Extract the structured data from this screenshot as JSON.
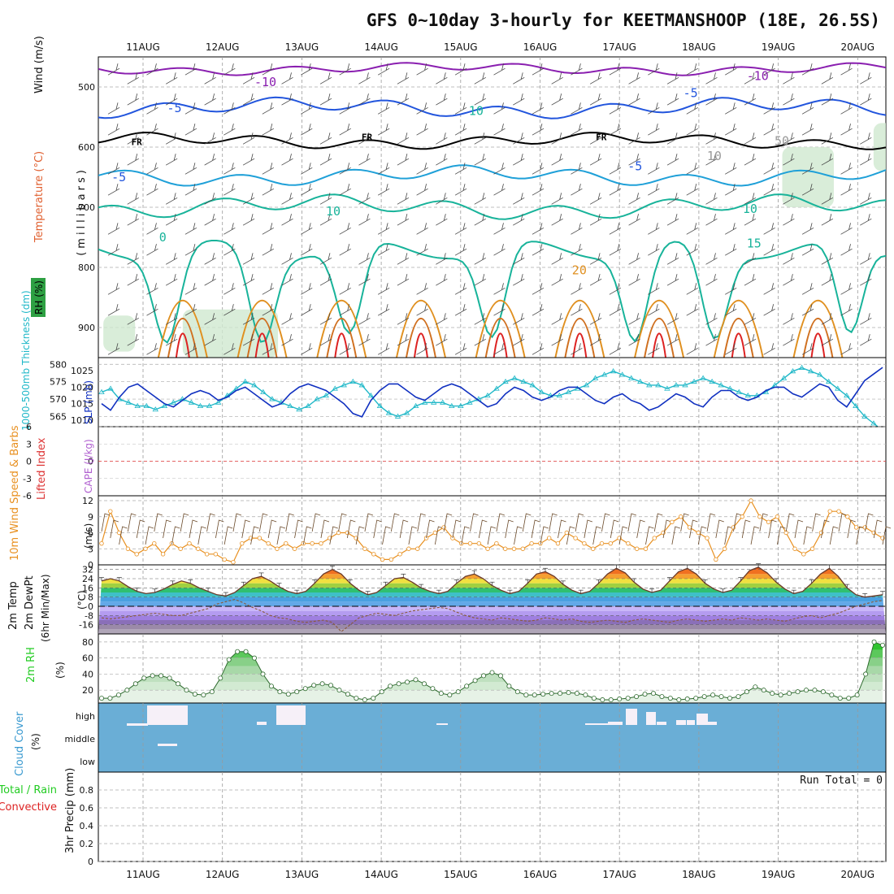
{
  "title": "GFS 0~10day 3-hourly for KEETMANSHOOP (18E, 26.5S)",
  "colors": {
    "rh_green": "#2ea043",
    "wind_gray": "#444444",
    "temp_violet": "#8a1fb0",
    "temp_blue": "#2255dd",
    "temp_cyan": "#1fa0d8",
    "temp_teal": "#18b39a",
    "temp_orange": "#e09020",
    "temp_red": "#dd2222",
    "slp_blue": "#1030c0",
    "thick_cyan": "#20b8c8",
    "wind10_orange": "#e89020",
    "cloud_blue": "#6aaed6",
    "precip_green": "#22cc22",
    "precip_red": "#dd2222"
  },
  "chart_data": [
    {
      "type": "contour",
      "name_hint": "upper-air cross section",
      "x_dates": [
        "11AUG",
        "12AUG",
        "13AUG",
        "14AUG",
        "15AUG",
        "16AUG",
        "17AUG",
        "18AUG",
        "19AUG",
        "20AUG"
      ],
      "ylabel": "(millibars)",
      "left_labels": [
        "Wind (m/s)",
        "Temperature (°C)",
        "RH (%)"
      ],
      "y_ticks": [
        500,
        600,
        700,
        800,
        900
      ],
      "ylim": [
        450,
        950
      ],
      "contour_labels": [
        {
          "label": "-10",
          "x": 1.8,
          "p": 492
        },
        {
          "label": "-10",
          "x": 8.0,
          "p": 482
        },
        {
          "label": "-5",
          "x": 0.7,
          "p": 535
        },
        {
          "label": "-5",
          "x": 7.2,
          "p": 510
        },
        {
          "label": "FR",
          "x": 0.25,
          "p": 590
        },
        {
          "label": "FR",
          "x": 3.15,
          "p": 582
        },
        {
          "label": "FR",
          "x": 6.1,
          "p": 582
        },
        {
          "label": "-5",
          "x": 0.0,
          "p": 650
        },
        {
          "label": "-5",
          "x": 6.5,
          "p": 632
        },
        {
          "label": "10",
          "x": 2.7,
          "p": 707
        },
        {
          "label": "10",
          "x": 7.95,
          "p": 703
        },
        {
          "label": "0",
          "x": 0.6,
          "p": 750
        },
        {
          "label": "15",
          "x": 8.0,
          "p": 760
        },
        {
          "label": "20",
          "x": 5.8,
          "p": 805
        },
        {
          "label": "10",
          "x": 4.5,
          "p": 540
        },
        {
          "label": "10",
          "x": 7.5,
          "p": 615
        },
        {
          "label": "50",
          "x": 8.35,
          "p": 590
        }
      ]
    },
    {
      "type": "line",
      "name_hint": "SLP and thickness",
      "left_labels": [
        "1000-500mb Thickness (dm)",
        "SLP (mb)"
      ],
      "y_ticks_left": [
        565,
        570,
        575,
        580
      ],
      "y_ticks_right": [
        1010,
        1015,
        1020,
        1025
      ],
      "series": [
        {
          "name": "SLP (mb)",
          "values": [
            1015,
            1013,
            1017,
            1020,
            1021,
            1019,
            1017,
            1015,
            1014,
            1016,
            1018,
            1019,
            1018,
            1016,
            1017,
            1019,
            1020,
            1018,
            1016,
            1014,
            1015,
            1018,
            1020,
            1021,
            1020,
            1019,
            1017,
            1015,
            1012,
            1011,
            1016,
            1019,
            1021,
            1021,
            1019,
            1017,
            1016,
            1018,
            1020,
            1021,
            1020,
            1018,
            1016,
            1014,
            1015,
            1018,
            1020,
            1019,
            1017,
            1016,
            1017,
            1019,
            1020,
            1020,
            1018,
            1016,
            1015,
            1017,
            1018,
            1016,
            1015,
            1013,
            1014,
            1016,
            1018,
            1017,
            1015,
            1014,
            1017,
            1019,
            1019,
            1017,
            1016,
            1017,
            1019,
            1020,
            1020,
            1018,
            1017,
            1019,
            1021,
            1020,
            1016,
            1014,
            1018,
            1022,
            1024,
            1026
          ]
        },
        {
          "name": "1000-500mb Thickness (dm)",
          "values": [
            572,
            573,
            570,
            569,
            568,
            568,
            567,
            568,
            569,
            570,
            569,
            568,
            568,
            569,
            571,
            573,
            575,
            574,
            572,
            570,
            569,
            568,
            567,
            568,
            570,
            571,
            573,
            574,
            575,
            574,
            571,
            568,
            566,
            565,
            566,
            568,
            569,
            569,
            569,
            568,
            568,
            569,
            570,
            571,
            573,
            575,
            576,
            575,
            574,
            572,
            571,
            571,
            572,
            573,
            574,
            576,
            577,
            578,
            577,
            576,
            575,
            574,
            574,
            573,
            574,
            574,
            575,
            576,
            575,
            574,
            573,
            572,
            571,
            571,
            572,
            574,
            576,
            578,
            579,
            578,
            577,
            575,
            573,
            571,
            568,
            565,
            563,
            561
          ]
        }
      ]
    },
    {
      "type": "line",
      "name_hint": "lifted index and CAPE",
      "left_labels": [
        "Lifted Index",
        "CAPE (J/kg)"
      ],
      "y_ticks": [
        -6,
        -3,
        0,
        3,
        6
      ],
      "y_tick_labels": [
        "6",
        "3",
        "0",
        "-3",
        "-6"
      ],
      "series": []
    },
    {
      "type": "line",
      "name_hint": "10m wind",
      "left_labels": [
        "10m Wind Speed & Barbs",
        "(m/s)"
      ],
      "y_ticks": [
        0,
        3,
        6,
        9,
        12
      ],
      "ylim": [
        0,
        12
      ],
      "series": [
        {
          "name": "10m Wind Speed",
          "values": [
            4,
            10,
            6,
            3,
            2,
            3,
            4,
            2,
            4,
            3,
            4,
            3,
            2,
            2,
            1,
            0.5,
            4,
            5,
            5,
            4,
            3,
            4,
            3,
            4,
            4,
            4,
            5,
            6,
            6,
            5,
            3,
            2,
            1,
            1,
            2,
            3,
            3,
            5,
            6,
            7,
            5,
            4,
            4,
            4,
            3,
            4,
            3,
            3,
            3,
            4,
            4,
            5,
            4,
            6,
            5,
            4,
            3,
            4,
            4,
            5,
            4,
            3,
            3,
            5,
            6,
            8,
            9,
            7,
            6,
            5,
            1,
            3,
            7,
            9,
            12,
            9,
            8,
            9,
            6,
            3,
            2,
            3,
            6,
            10,
            10,
            9,
            7,
            7,
            6,
            5
          ]
        }
      ]
    },
    {
      "type": "area",
      "name_hint": "2m temperature and dewpoint",
      "left_labels": [
        "2m Temp",
        "2m DewPt",
        "(6hr Min/Max)",
        "(°C)"
      ],
      "y_ticks": [
        32,
        24,
        16,
        8,
        0,
        -8,
        -16
      ],
      "ylim": [
        -24,
        36
      ],
      "series": [
        {
          "name": "2m Temp",
          "values": [
            22,
            24,
            22,
            17,
            13,
            11,
            12,
            15,
            19,
            22,
            20,
            16,
            13,
            10,
            9,
            12,
            18,
            24,
            26,
            22,
            17,
            13,
            11,
            13,
            20,
            28,
            32,
            28,
            20,
            14,
            10,
            12,
            18,
            24,
            25,
            21,
            16,
            13,
            11,
            13,
            20,
            26,
            28,
            24,
            18,
            14,
            11,
            13,
            20,
            28,
            30,
            26,
            19,
            14,
            11,
            13,
            20,
            28,
            33,
            29,
            21,
            15,
            12,
            14,
            22,
            30,
            33,
            28,
            20,
            15,
            12,
            14,
            22,
            31,
            34,
            29,
            21,
            15,
            11,
            13,
            20,
            28,
            33,
            26,
            16,
            10,
            8,
            9,
            10
          ]
        },
        {
          "name": "2m DewPt",
          "values": [
            -10,
            -11,
            -10,
            -9,
            -8,
            -7,
            -6,
            -7,
            -8,
            -8,
            -6,
            -4,
            -2,
            2,
            4,
            6,
            3,
            -1,
            -4,
            -8,
            -10,
            -11,
            -13,
            -14,
            -13,
            -12,
            -14,
            -22,
            -16,
            -10,
            -8,
            -6,
            -7,
            -8,
            -6,
            -4,
            -3,
            -2,
            -1,
            -2,
            -5,
            -8,
            -10,
            -11,
            -12,
            -10,
            -11,
            -12,
            -13,
            -12,
            -10,
            -11,
            -12,
            -11,
            -13,
            -14,
            -13,
            -12,
            -13,
            -14,
            -12,
            -11,
            -12,
            -13,
            -14,
            -12,
            -11,
            -12,
            -13,
            -12,
            -11,
            -12,
            -10,
            -11,
            -12,
            -11,
            -12,
            -13,
            -11,
            -9,
            -8,
            -10,
            -8,
            -6,
            -3,
            0,
            2,
            4,
            5
          ]
        }
      ]
    },
    {
      "type": "area",
      "name_hint": "2m relative humidity",
      "left_labels": [
        "2m RH",
        "(%)"
      ],
      "y_ticks": [
        20,
        40,
        60,
        80
      ],
      "ylim": [
        4,
        90
      ],
      "series": [
        {
          "name": "2m RH",
          "values": [
            10,
            10,
            14,
            20,
            28,
            35,
            38,
            38,
            35,
            28,
            20,
            15,
            14,
            18,
            35,
            58,
            68,
            68,
            60,
            40,
            25,
            18,
            15,
            18,
            22,
            26,
            28,
            26,
            20,
            15,
            10,
            8,
            10,
            18,
            25,
            28,
            30,
            33,
            28,
            22,
            16,
            14,
            18,
            25,
            32,
            38,
            42,
            38,
            25,
            18,
            14,
            14,
            15,
            16,
            16,
            17,
            16,
            14,
            10,
            8,
            8,
            9,
            10,
            12,
            15,
            16,
            12,
            10,
            8,
            9,
            10,
            12,
            14,
            12,
            10,
            12,
            18,
            24,
            20,
            16,
            14,
            16,
            18,
            20,
            20,
            18,
            14,
            10,
            10,
            14,
            40,
            80,
            76
          ]
        }
      ]
    },
    {
      "type": "bar",
      "name_hint": "cloud cover",
      "left_labels": [
        "Cloud Cover",
        "(%)"
      ],
      "y_tick_labels": [
        "high",
        "middle",
        "low"
      ]
    },
    {
      "type": "bar",
      "name_hint": "3hr precipitation",
      "left_labels": [
        "Total / Rain",
        "Convective",
        "3hr Precip (mm)"
      ],
      "y_ticks": [
        0,
        0.2,
        0.4,
        0.6,
        0.8
      ],
      "y_tick_labels": [
        "0",
        "0.2",
        "0.4",
        "0.6",
        "0.8"
      ],
      "ylim": [
        0,
        1
      ],
      "annotation": "Run Total = 0",
      "series": [
        {
          "name": "3hr Precip (mm)",
          "values": []
        }
      ]
    }
  ]
}
